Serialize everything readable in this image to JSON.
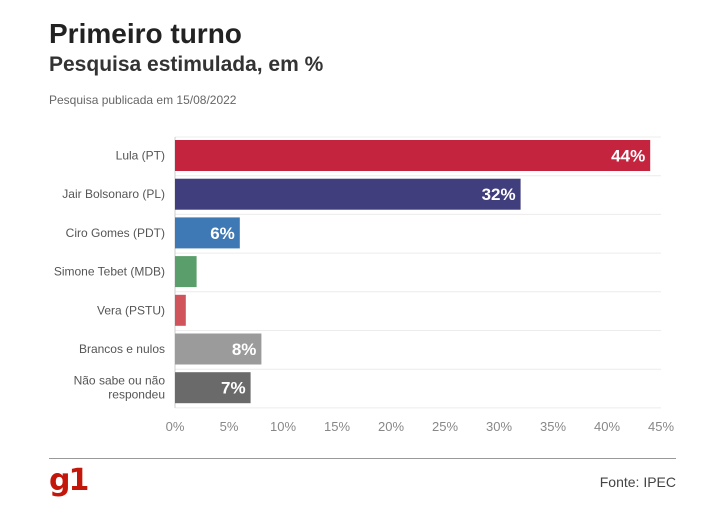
{
  "header": {
    "title": "Primeiro turno",
    "subtitle": "Pesquisa estimulada, em %",
    "note": "Pesquisa publicada em 15/08/2022"
  },
  "footer": {
    "logo": "g1",
    "source": "Fonte: IPEC",
    "logo_color": "#c4170c"
  },
  "chart_data": {
    "type": "bar",
    "orientation": "horizontal",
    "categories": [
      "Lula (PT)",
      "Jair Bolsonaro (PL)",
      "Ciro Gomes (PDT)",
      "Simone Tebet (MDB)",
      "Vera (PSTU)",
      "Brancos e nulos",
      "Não sabe ou não respondeu"
    ],
    "values": [
      44,
      32,
      6,
      2,
      1,
      8,
      7
    ],
    "data_labels": [
      "44%",
      "32%",
      "6%",
      "",
      "",
      "8%",
      "7%"
    ],
    "colors": [
      "#c4243e",
      "#403e7c",
      "#3e78b5",
      "#5a9e6b",
      "#d0545c",
      "#9b9b9b",
      "#6a6a6a"
    ],
    "xlim": [
      0,
      45
    ],
    "xticks": [
      0,
      5,
      10,
      15,
      20,
      25,
      30,
      35,
      40,
      45
    ],
    "xtick_labels": [
      "0%",
      "5%",
      "10%",
      "15%",
      "20%",
      "25%",
      "30%",
      "35%",
      "40%",
      "45%"
    ],
    "grid": true
  }
}
